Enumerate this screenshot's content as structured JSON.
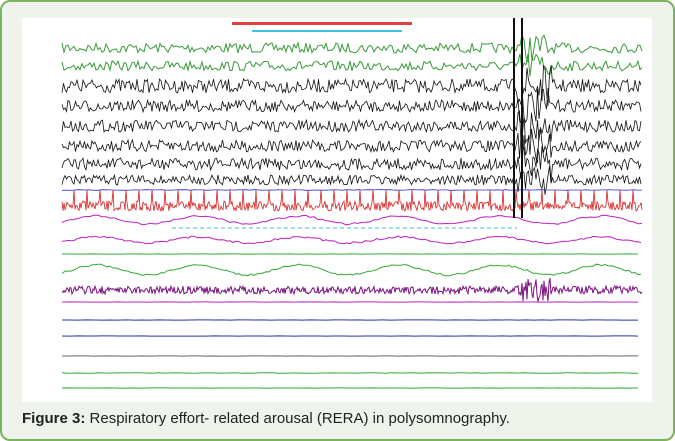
{
  "figure": {
    "label": "Figure 3:",
    "caption": "Respiratory effort- related arousal (RERA) in polysomnography."
  }
}
